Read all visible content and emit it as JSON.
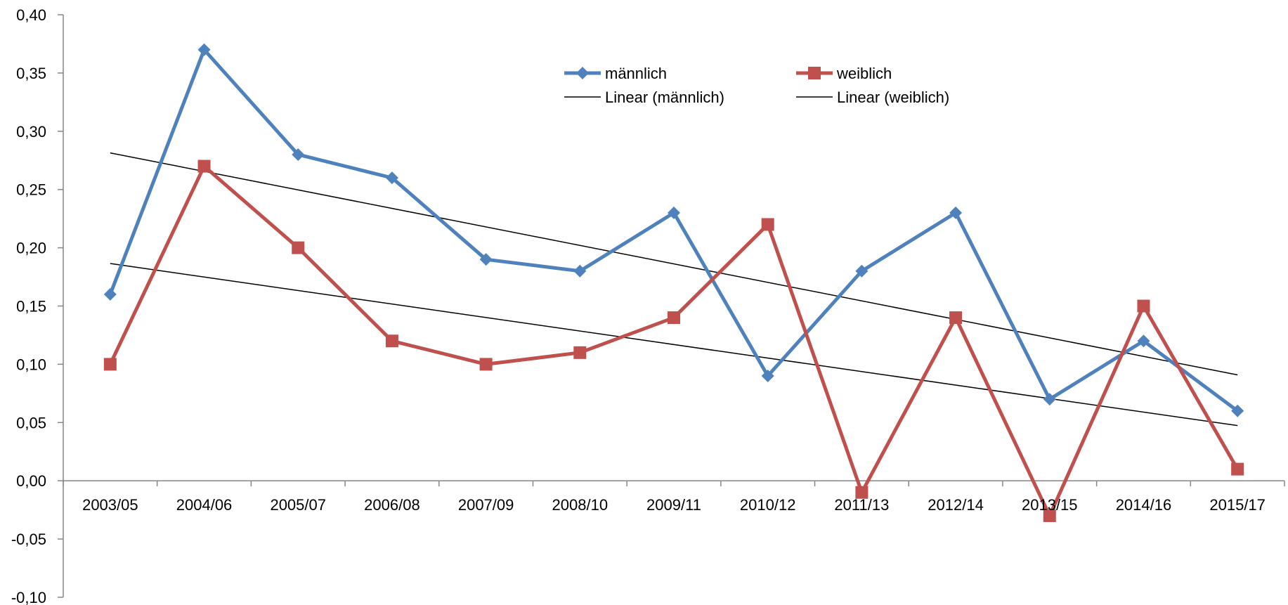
{
  "chart_data": {
    "type": "line",
    "title": "",
    "xlabel": "",
    "ylabel": "",
    "categories": [
      "2003/05",
      "2004/06",
      "2005/07",
      "2006/08",
      "2007/09",
      "2008/10",
      "2009/11",
      "2010/12",
      "2011/13",
      "2012/14",
      "2013/15",
      "2014/16",
      "2015/17"
    ],
    "ylim": [
      -0.1,
      0.4
    ],
    "ytick_values": [
      0.4,
      0.35,
      0.3,
      0.25,
      0.2,
      0.15,
      0.1,
      0.05,
      0.0,
      -0.05,
      -0.1
    ],
    "ytick_labels": [
      "0,40",
      "0,35",
      "0,30",
      "0,25",
      "0,20",
      "0,15",
      "0,10",
      "0,05",
      "0,00",
      "-0,05",
      "-0,10"
    ],
    "series": [
      {
        "name": "männlich",
        "color": "#4F81BD",
        "marker": "diamond",
        "values": [
          0.16,
          0.37,
          0.28,
          0.26,
          0.19,
          0.18,
          0.23,
          0.09,
          0.18,
          0.23,
          0.07,
          0.12,
          0.06
        ]
      },
      {
        "name": "weiblich",
        "color": "#C0504D",
        "marker": "square",
        "values": [
          0.1,
          0.27,
          0.2,
          0.12,
          0.1,
          0.11,
          0.14,
          0.22,
          -0.01,
          0.14,
          -0.03,
          0.15,
          0.01
        ]
      }
    ],
    "trendlines": [
      {
        "name": "Linear (männlich)",
        "color": "#000000",
        "of_series": "männlich"
      },
      {
        "name": "Linear (weiblich)",
        "color": "#000000",
        "of_series": "weiblich"
      }
    ],
    "legend_position": "top-right",
    "grid": false
  }
}
